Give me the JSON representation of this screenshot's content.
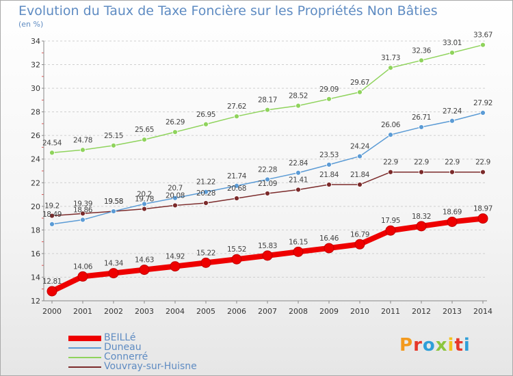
{
  "title": "Evolution du Taux de Taxe Foncière sur les Propriétés Non Bâties",
  "unit_label": "(en %)",
  "logo": {
    "text": "Proxiti",
    "colors": [
      "#f39a1e",
      "#e6382a",
      "#2f9fd8",
      "#8cc63f",
      "#f3c21e",
      "#e6382a",
      "#2f9fd8"
    ]
  },
  "chart_data": {
    "type": "line",
    "title": "Evolution du Taux de Taxe Foncière sur les Propriétés Non Bâties",
    "ylabel": "(en %)",
    "xlabel": "",
    "x": [
      "2000",
      "2001",
      "2002",
      "2003",
      "2004",
      "2005",
      "2006",
      "2007",
      "2008",
      "2009",
      "2010",
      "2011",
      "2012",
      "2013",
      "2014"
    ],
    "ylim": [
      12,
      34
    ],
    "yticks": [
      12,
      14,
      16,
      18,
      20,
      22,
      24,
      26,
      28,
      30,
      32,
      34
    ],
    "grid": "horizontal-dashed",
    "legend_position": "bottom-left",
    "series": [
      {
        "name": "BEILLé",
        "color": "#ee0000",
        "values": [
          12.81,
          14.06,
          14.34,
          14.63,
          14.92,
          15.22,
          15.52,
          15.83,
          16.15,
          16.46,
          16.79,
          17.95,
          18.32,
          18.69,
          18.97
        ],
        "labels": [
          "12.81",
          "14.06",
          "14.34",
          "14.63",
          "14.92",
          "15.22",
          "15.52",
          "15.83",
          "16.15",
          "16.46",
          "16.79",
          "17.95",
          "18.32",
          "18.69",
          "18.97"
        ]
      },
      {
        "name": "Duneau",
        "color": "#5b9bd5",
        "values": [
          18.49,
          18.86,
          19.58,
          20.2,
          20.7,
          21.22,
          21.74,
          22.28,
          22.84,
          23.53,
          24.24,
          26.06,
          26.71,
          27.24,
          27.92
        ],
        "labels": [
          "18.49",
          "18.86",
          "19.58",
          "20.2",
          "20.7",
          "21.22",
          "21.74",
          "22.28",
          "22.84",
          "23.53",
          "24.24",
          "26.06",
          "26.71",
          "27.24",
          "27.92"
        ]
      },
      {
        "name": "Connerré",
        "color": "#8fd35c",
        "values": [
          24.54,
          24.78,
          25.15,
          25.65,
          26.29,
          26.95,
          27.62,
          28.17,
          28.52,
          29.09,
          29.67,
          31.73,
          32.36,
          33.01,
          33.67
        ],
        "labels": [
          "24.54",
          "24.78",
          "25.15",
          "25.65",
          "26.29",
          "26.95",
          "27.62",
          "28.17",
          "28.52",
          "29.09",
          "29.67",
          "31.73",
          "32.36",
          "33.01",
          "33.67"
        ]
      },
      {
        "name": "Vouvray-sur-Huisne",
        "color": "#7b2a2a",
        "values": [
          19.2,
          19.39,
          19.58,
          19.78,
          20.08,
          20.28,
          20.68,
          21.09,
          21.41,
          21.84,
          21.84,
          22.9,
          22.9,
          22.9,
          22.9
        ],
        "labels": [
          "19.2",
          "19.39",
          "19.58",
          "19.78",
          "20.08",
          "20.28",
          "20.68",
          "21.09",
          "21.41",
          "21.84",
          "21.84",
          "22.9",
          "22.9",
          "22.9",
          "22.9"
        ]
      }
    ]
  }
}
